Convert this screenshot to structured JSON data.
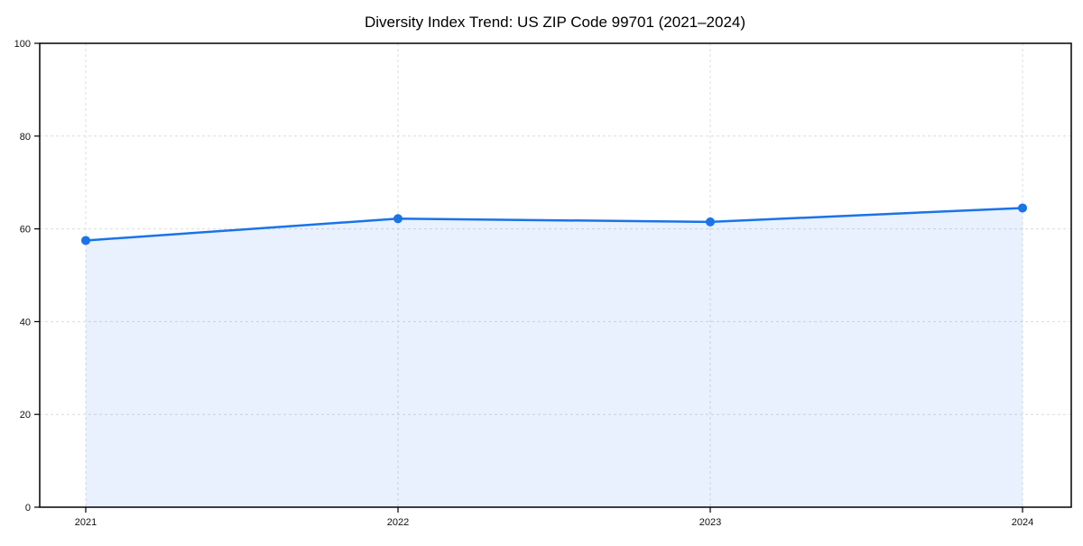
{
  "chart_data": {
    "type": "line",
    "title": "Diversity Index Trend: US ZIP Code 99701 (2021–2024)",
    "categories": [
      "2021",
      "2022",
      "2023",
      "2024"
    ],
    "values": [
      57.5,
      62.2,
      61.5,
      64.5
    ],
    "xlabel": "",
    "ylabel": "",
    "ylim": [
      0,
      100
    ],
    "yticks": [
      0,
      20,
      40,
      60,
      80,
      100
    ],
    "grid": true,
    "legend": false,
    "line_color": "#1a73e8",
    "marker_color": "#1a73e8",
    "area_fill": "rgba(26,115,232,0.10)",
    "spine_color": "#000000",
    "grid_color": "#dcdcdc"
  }
}
